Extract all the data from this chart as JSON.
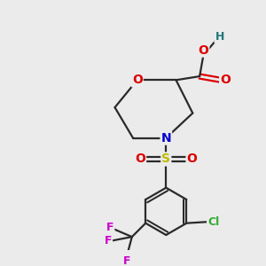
{
  "bg_color": "#ebebeb",
  "bond_color": "#2a2a2a",
  "bond_width": 1.6,
  "atom_colors": {
    "O": "#dd0000",
    "N": "#0000cc",
    "S": "#bbbb00",
    "Cl": "#33aa33",
    "F": "#cc00cc",
    "C": "#2a2a2a",
    "H": "#227777"
  },
  "font_size": 10,
  "fig_size": [
    3.0,
    3.0
  ],
  "dpi": 100
}
